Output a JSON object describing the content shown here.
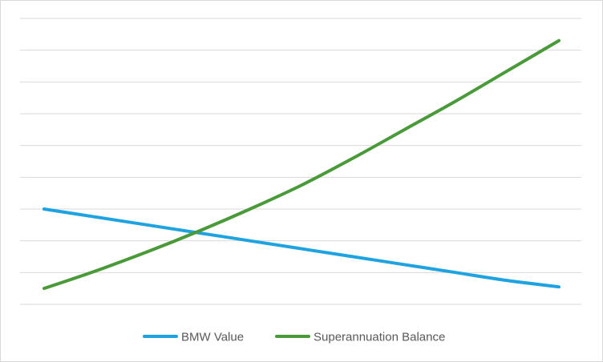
{
  "chart_data": {
    "type": "line",
    "title": "",
    "xlabel": "",
    "ylabel": "",
    "x": [
      0,
      1,
      2,
      3,
      4,
      5,
      6,
      7,
      8,
      9,
      10
    ],
    "ylim": [
      0,
      9
    ],
    "grid": true,
    "legend": "bottom",
    "series": [
      {
        "name": "BMW Value",
        "color": "#1fa2e0",
        "values": [
          3.0,
          2.75,
          2.5,
          2.25,
          2.0,
          1.75,
          1.5,
          1.25,
          1.0,
          0.75,
          0.55
        ]
      },
      {
        "name": "Superannuation Balance",
        "color": "#4a9a3a",
        "values": [
          0.5,
          1.05,
          1.65,
          2.3,
          3.0,
          3.75,
          4.6,
          5.5,
          6.4,
          7.35,
          8.3
        ]
      }
    ]
  }
}
